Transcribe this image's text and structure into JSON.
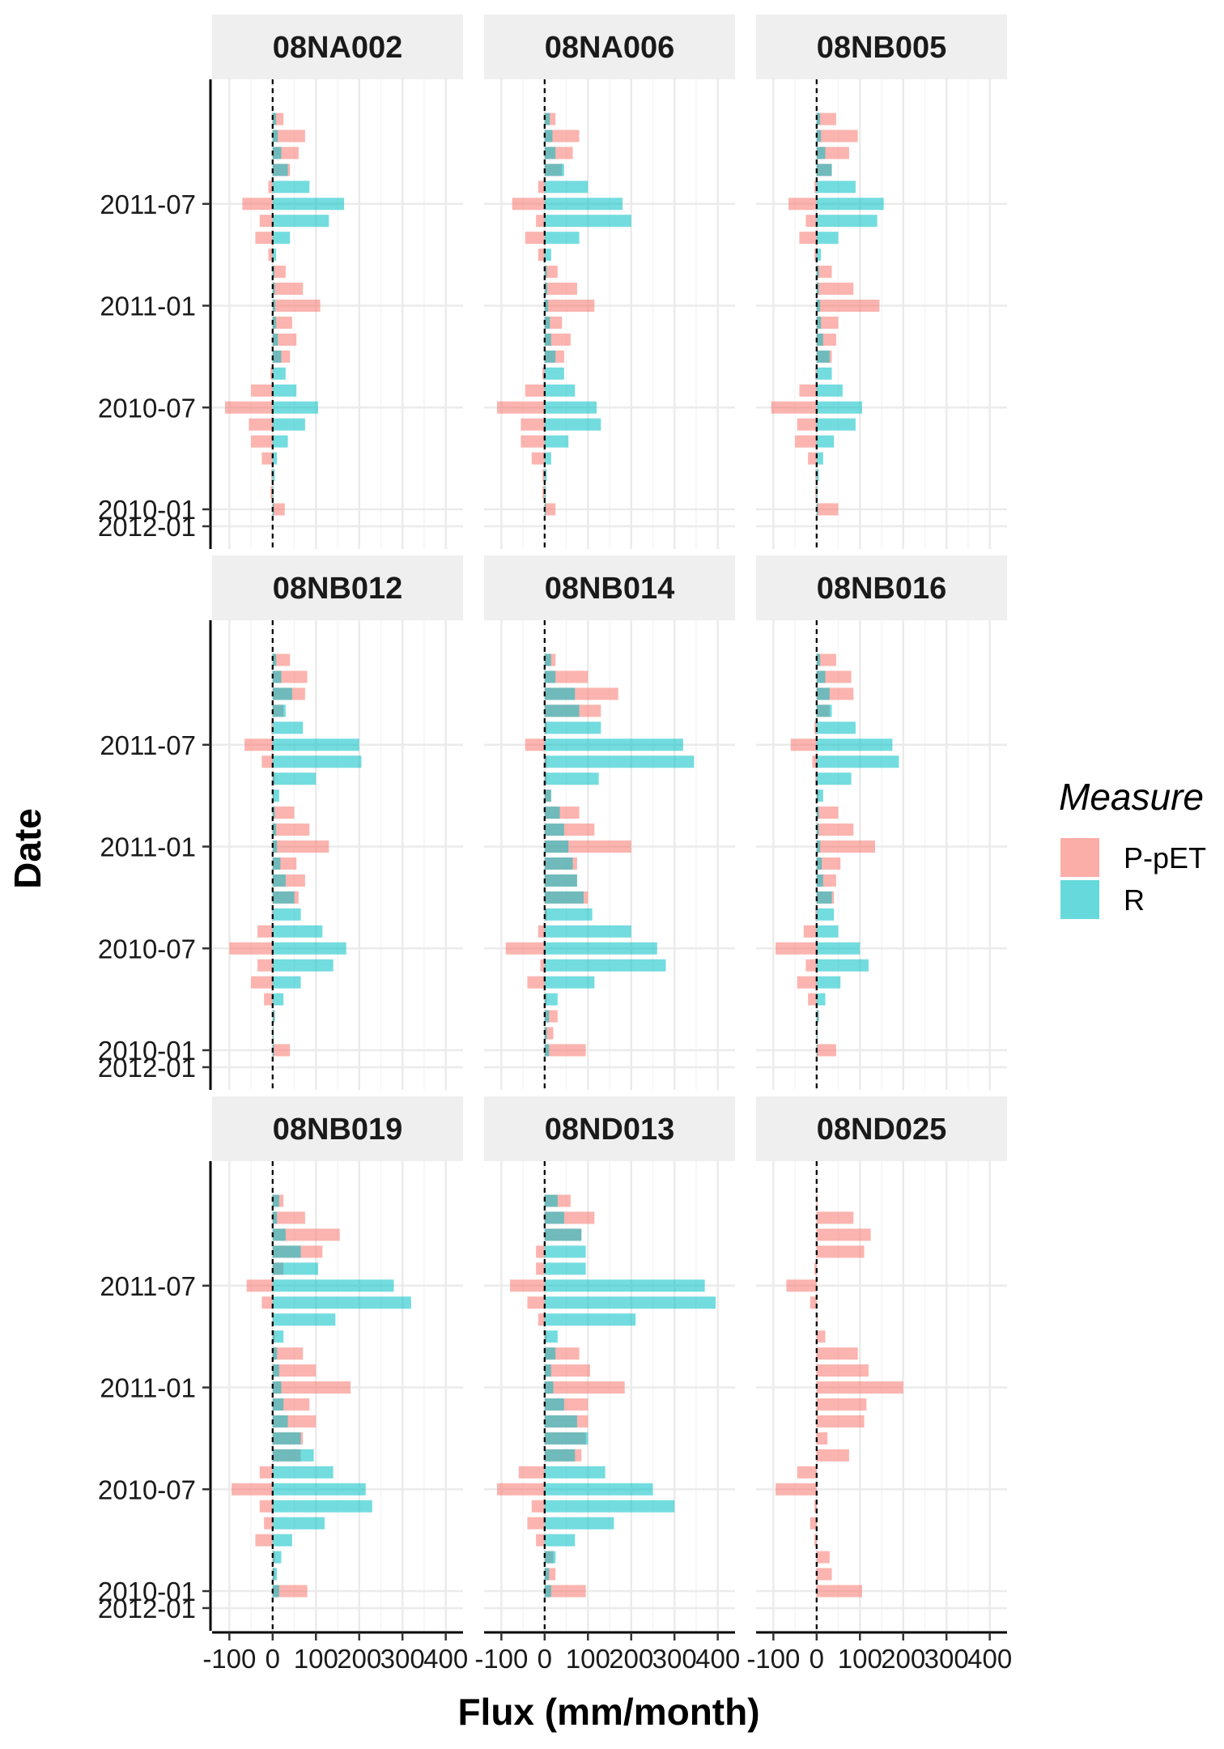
{
  "chart_data": {
    "type": "bar",
    "orientation": "horizontal",
    "xlabel": "Flux (mm/month)",
    "ylabel": "Date",
    "xlim": [
      -110,
      410
    ],
    "x_ticks": [
      -100,
      0,
      100,
      200,
      300,
      400
    ],
    "x_tick_labels": [
      "-100",
      "0",
      "100",
      "200",
      "300",
      "400"
    ],
    "y_ticks": [
      "2010-01",
      "2010-07",
      "2011-01",
      "2011-07",
      "2012-01"
    ],
    "y_tick_labels": [
      "2010-01",
      "2010-07",
      "2011-01",
      "2011-07",
      "2012-01"
    ],
    "dates": [
      "2010-01",
      "2010-02",
      "2010-03",
      "2010-04",
      "2010-05",
      "2010-06",
      "2010-07",
      "2010-08",
      "2010-09",
      "2010-10",
      "2010-11",
      "2010-12",
      "2011-01",
      "2011-02",
      "2011-03",
      "2011-04",
      "2011-05",
      "2011-06",
      "2011-07",
      "2011-08",
      "2011-09",
      "2011-10",
      "2011-11",
      "2011-12"
    ],
    "reference_line": {
      "x": 0,
      "style": "dashed"
    },
    "grid": true,
    "legend": {
      "title": "Measure",
      "position": "right",
      "entries": [
        {
          "name": "P-pET",
          "color": "#f8766d"
        },
        {
          "name": "R",
          "color": "#00bfc4"
        }
      ]
    },
    "facets": [
      {
        "title": "08NA002",
        "series": [
          {
            "name": "P-pET",
            "values": [
              28,
              -5,
              -3,
              -25,
              -50,
              -55,
              -110,
              -50,
              -5,
              40,
              55,
              45,
              110,
              70,
              30,
              -10,
              -40,
              -30,
              -70,
              -10,
              40,
              60,
              75,
              25
            ]
          },
          {
            "name": "R",
            "values": [
              3,
              2,
              5,
              10,
              35,
              75,
              105,
              55,
              30,
              20,
              12,
              8,
              6,
              5,
              4,
              8,
              40,
              130,
              165,
              85,
              35,
              20,
              12,
              8
            ]
          }
        ]
      },
      {
        "title": "08NA006",
        "series": [
          {
            "name": "P-pET",
            "values": [
              25,
              -5,
              -5,
              -30,
              -55,
              -55,
              -110,
              -45,
              -5,
              45,
              60,
              40,
              115,
              75,
              30,
              -15,
              -45,
              -20,
              -75,
              -15,
              40,
              65,
              80,
              25
            ]
          },
          {
            "name": "R",
            "values": [
              3,
              3,
              5,
              15,
              55,
              130,
              120,
              70,
              45,
              25,
              15,
              12,
              8,
              6,
              5,
              15,
              80,
              200,
              180,
              100,
              45,
              25,
              18,
              12
            ]
          }
        ]
      },
      {
        "title": "08NB005",
        "series": [
          {
            "name": "P-pET",
            "values": [
              50,
              -3,
              -3,
              -20,
              -50,
              -45,
              -105,
              -40,
              -3,
              35,
              45,
              50,
              145,
              85,
              35,
              -5,
              -40,
              -25,
              -65,
              -5,
              35,
              75,
              95,
              45
            ]
          },
          {
            "name": "R",
            "values": [
              3,
              2,
              5,
              15,
              40,
              90,
              105,
              60,
              35,
              30,
              15,
              10,
              8,
              5,
              5,
              10,
              50,
              140,
              155,
              90,
              35,
              20,
              10,
              8
            ]
          }
        ]
      },
      {
        "title": "08NB012",
        "series": [
          {
            "name": "P-pET",
            "values": [
              40,
              2,
              5,
              -20,
              -50,
              -35,
              -100,
              -35,
              -2,
              60,
              75,
              55,
              130,
              85,
              50,
              3,
              5,
              -25,
              -65,
              -3,
              25,
              75,
              80,
              40
            ]
          },
          {
            "name": "R",
            "values": [
              3,
              2,
              5,
              25,
              65,
              140,
              170,
              115,
              65,
              50,
              30,
              18,
              10,
              8,
              5,
              15,
              100,
              205,
              200,
              70,
              30,
              45,
              20,
              8
            ]
          }
        ]
      },
      {
        "title": "08NB014",
        "series": [
          {
            "name": "P-pET",
            "values": [
              95,
              20,
              30,
              5,
              -40,
              -10,
              -90,
              -15,
              5,
              100,
              75,
              75,
              200,
              115,
              80,
              15,
              5,
              5,
              -45,
              5,
              130,
              170,
              100,
              25
            ]
          },
          {
            "name": "R",
            "values": [
              10,
              5,
              10,
              30,
              115,
              280,
              260,
              200,
              110,
              90,
              75,
              65,
              55,
              45,
              35,
              15,
              125,
              345,
              320,
              130,
              80,
              70,
              25,
              15
            ]
          }
        ]
      },
      {
        "title": "08NB016",
        "series": [
          {
            "name": "P-pET",
            "values": [
              45,
              2,
              5,
              -20,
              -45,
              -25,
              -95,
              -30,
              -3,
              40,
              45,
              55,
              135,
              85,
              50,
              5,
              -3,
              -10,
              -60,
              -5,
              30,
              85,
              80,
              45
            ]
          },
          {
            "name": "R",
            "values": [
              2,
              2,
              5,
              20,
              55,
              120,
              100,
              50,
              40,
              35,
              15,
              12,
              8,
              5,
              5,
              15,
              80,
              190,
              175,
              90,
              35,
              30,
              20,
              8
            ]
          }
        ]
      },
      {
        "title": "08NB019",
        "series": [
          {
            "name": "P-pET",
            "values": [
              80,
              5,
              5,
              -40,
              -20,
              -30,
              -95,
              -30,
              65,
              70,
              100,
              85,
              180,
              100,
              70,
              5,
              2,
              -25,
              -60,
              25,
              115,
              155,
              75,
              25
            ]
          },
          {
            "name": "R",
            "values": [
              15,
              10,
              20,
              45,
              120,
              230,
              215,
              140,
              95,
              65,
              35,
              25,
              20,
              15,
              10,
              25,
              145,
              320,
              280,
              105,
              65,
              30,
              10,
              15
            ]
          }
        ]
      },
      {
        "title": "08ND013",
        "series": [
          {
            "name": "P-pET",
            "values": [
              95,
              25,
              20,
              -20,
              -40,
              -30,
              -110,
              -60,
              85,
              95,
              100,
              100,
              185,
              105,
              80,
              5,
              -15,
              -40,
              -80,
              -20,
              -20,
              85,
              115,
              60
            ]
          },
          {
            "name": "R",
            "values": [
              15,
              10,
              25,
              70,
              160,
              300,
              250,
              140,
              70,
              100,
              75,
              45,
              20,
              15,
              25,
              30,
              210,
              395,
              370,
              95,
              95,
              85,
              45,
              30
            ]
          }
        ]
      },
      {
        "title": "08ND025",
        "series": [
          {
            "name": "P-pET",
            "values": [
              105,
              35,
              30,
              -5,
              -15,
              -5,
              -95,
              -45,
              75,
              25,
              110,
              115,
              200,
              120,
              95,
              20,
              2,
              -15,
              -70,
              -5,
              110,
              125,
              85,
              2
            ]
          },
          {
            "name": "R",
            "values": [
              0,
              0,
              0,
              0,
              0,
              0,
              0,
              0,
              0,
              0,
              0,
              0,
              0,
              0,
              0,
              0,
              0,
              0,
              0,
              0,
              0,
              0,
              0,
              0
            ]
          }
        ]
      }
    ]
  }
}
